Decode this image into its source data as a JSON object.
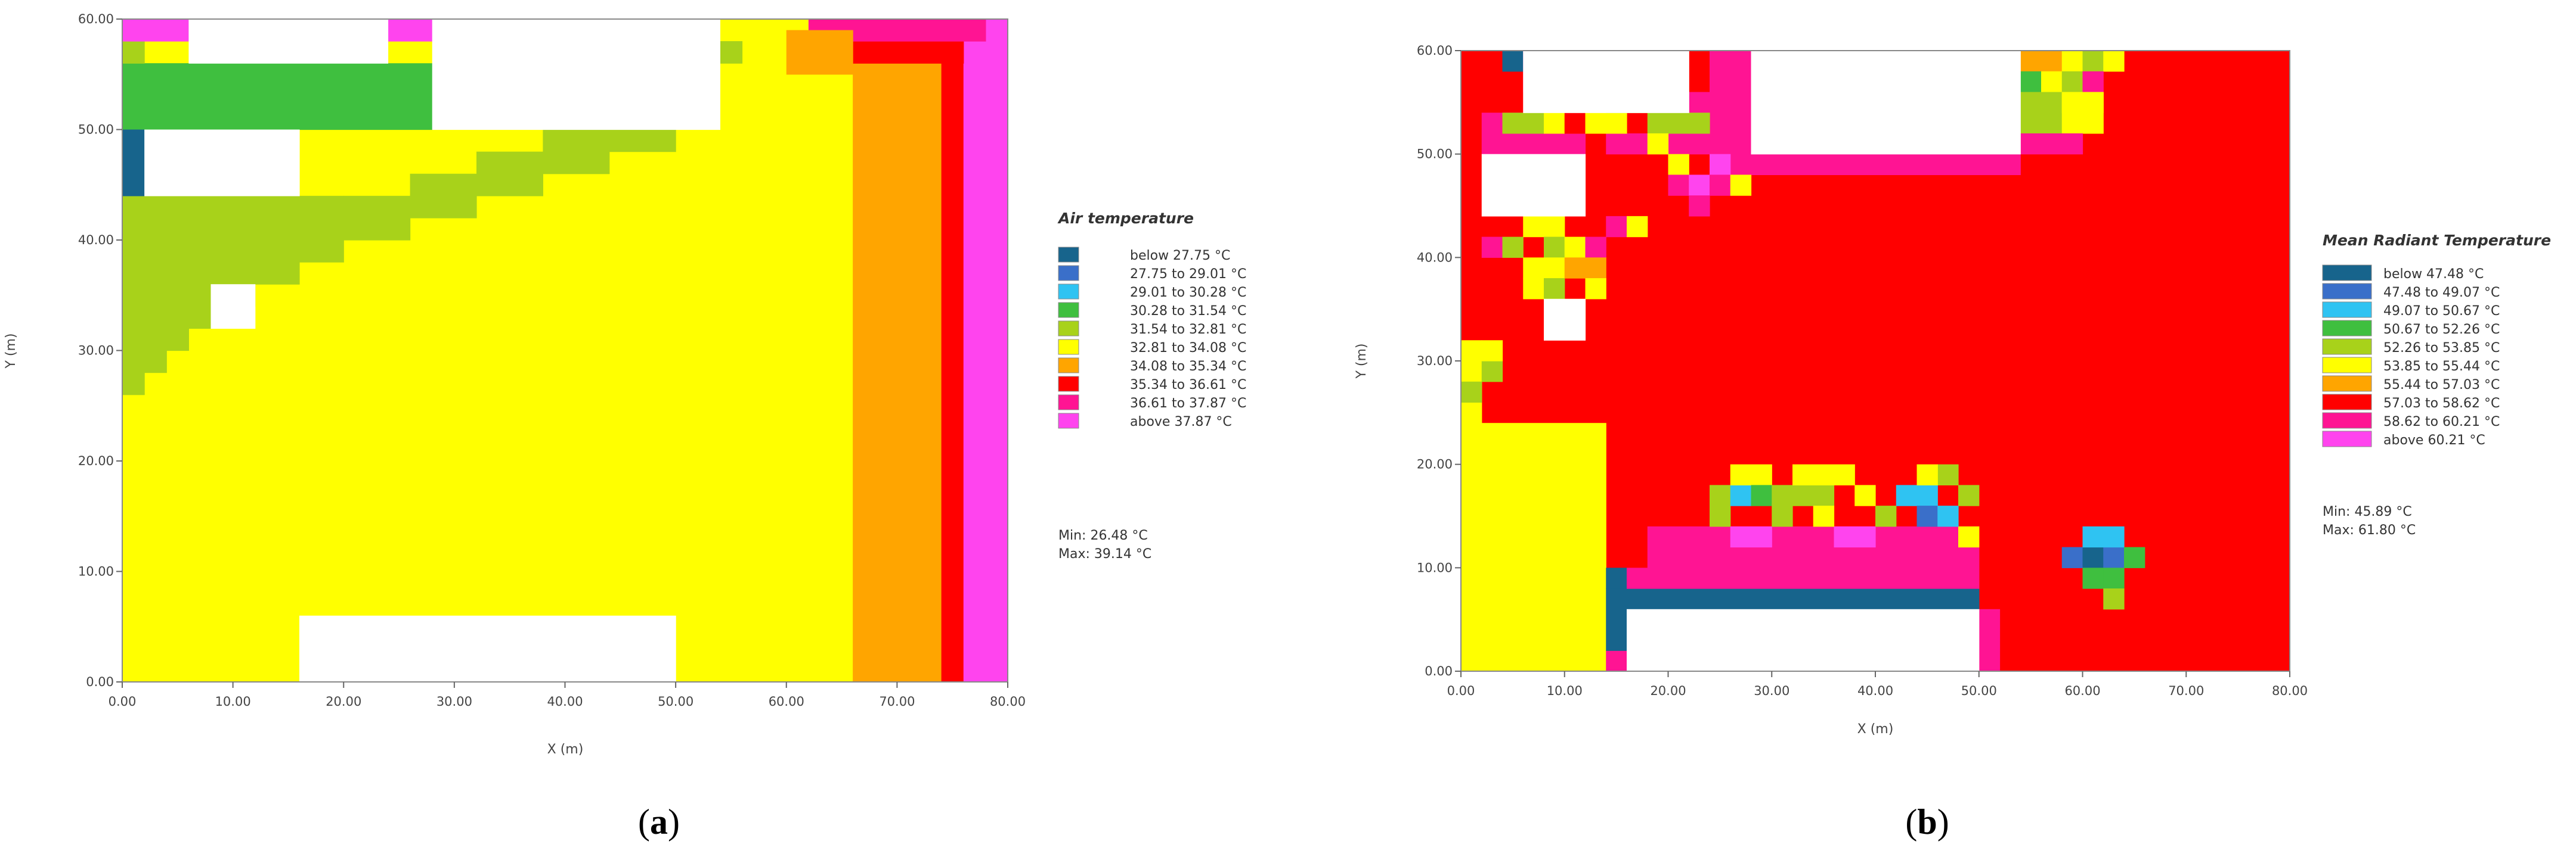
{
  "colors": [
    "#17648c",
    "#3a6fc9",
    "#2fc3f2",
    "#3fbf3f",
    "#a8d21a",
    "#ffff00",
    "#ffa500",
    "#ff0000",
    "#ff1493",
    "#ff44ee"
  ],
  "chart_data": [
    {
      "type": "heatmap",
      "panel_label": "a",
      "xlabel": "X (m)",
      "ylabel": "Y (m)",
      "xlim": [
        0,
        80
      ],
      "ylim": [
        0,
        60
      ],
      "x_ticks": [
        "0.00",
        "10.00",
        "20.00",
        "30.00",
        "40.00",
        "50.00",
        "60.00",
        "70.00",
        "80.00"
      ],
      "y_ticks": [
        "0.00",
        "10.00",
        "20.00",
        "30.00",
        "40.00",
        "50.00",
        "60.00"
      ],
      "legend": {
        "title": "Air temperature",
        "entries": [
          "below 27.75 °C",
          "27.75 to 29.01 °C",
          "29.01 to 30.28 °C",
          "30.28 to 31.54 °C",
          "31.54 to 32.81 °C",
          "32.81 to 34.08 °C",
          "34.08 to 35.34 °C",
          "35.34 to 36.61 °C",
          "36.61 to 37.87 °C",
          "above 37.87 °C"
        ],
        "min": "Min: 26.48 °C",
        "max": "Max: 39.14 °C"
      },
      "cells": [
        [
          0,
          0,
          80,
          60,
          5
        ],
        [
          66,
          0,
          8,
          60,
          6
        ],
        [
          74,
          0,
          2,
          60,
          7
        ],
        [
          76,
          0,
          4,
          60,
          9
        ],
        [
          64,
          56,
          12,
          3,
          7
        ],
        [
          62,
          58,
          16,
          2,
          8
        ],
        [
          60,
          55,
          6,
          4,
          6
        ],
        [
          0,
          44,
          8,
          12,
          4
        ],
        [
          0,
          26,
          2,
          18,
          4
        ],
        [
          2,
          28,
          2,
          16,
          4
        ],
        [
          4,
          30,
          2,
          14,
          4
        ],
        [
          6,
          32,
          2,
          12,
          4
        ],
        [
          8,
          34,
          4,
          10,
          4
        ],
        [
          12,
          36,
          4,
          8,
          4
        ],
        [
          16,
          38,
          4,
          6,
          4
        ],
        [
          20,
          40,
          6,
          4,
          4
        ],
        [
          26,
          42,
          6,
          4,
          4
        ],
        [
          32,
          44,
          6,
          4,
          4
        ],
        [
          38,
          46,
          6,
          4,
          4
        ],
        [
          44,
          48,
          6,
          4,
          4
        ],
        [
          0,
          50,
          28,
          6,
          3
        ],
        [
          0,
          44,
          2,
          6,
          0
        ],
        [
          0,
          56,
          2,
          2,
          4
        ],
        [
          0,
          58,
          6,
          2,
          9
        ],
        [
          24,
          58,
          4,
          2,
          9
        ],
        [
          54,
          56,
          2,
          2,
          4
        ],
        [
          48,
          54,
          4,
          2,
          4
        ],
        [
          8,
          32,
          4,
          4,
          -1
        ],
        [
          2,
          44,
          14,
          6,
          -1
        ],
        [
          6,
          56,
          18,
          4,
          -1
        ],
        [
          28,
          50,
          26,
          10,
          -1
        ],
        [
          16,
          0,
          34,
          6,
          -1
        ]
      ]
    },
    {
      "type": "heatmap",
      "panel_label": "b",
      "xlabel": "X (m)",
      "ylabel": "Y (m)",
      "xlim": [
        0,
        80
      ],
      "ylim": [
        0,
        60
      ],
      "x_ticks": [
        "0.00",
        "10.00",
        "20.00",
        "30.00",
        "40.00",
        "50.00",
        "60.00",
        "70.00",
        "80.00"
      ],
      "y_ticks": [
        "0.00",
        "10.00",
        "20.00",
        "30.00",
        "40.00",
        "50.00",
        "60.00"
      ],
      "legend": {
        "title": "Mean Radiant Temperature",
        "entries": [
          "below 47.48 °C",
          "47.48 to 49.07 °C",
          "49.07 to 50.67 °C",
          "50.67 to 52.26 °C",
          "52.26 to 53.85 °C",
          "53.85 to 55.44 °C",
          "55.44 to 57.03 °C",
          "57.03 to 58.62 °C",
          "58.62 to 60.21 °C",
          "above 60.21 °C"
        ],
        "min": "Min: 45.89 °C",
        "max": "Max: 61.80 °C"
      },
      "cells": [
        [
          0,
          0,
          80,
          60,
          7
        ],
        [
          0,
          0,
          14,
          24,
          5
        ],
        [
          0,
          24,
          2,
          8,
          5
        ],
        [
          0,
          26,
          2,
          2,
          4
        ],
        [
          2,
          28,
          2,
          2,
          4
        ],
        [
          2,
          30,
          2,
          2,
          5
        ],
        [
          14,
          0,
          2,
          2,
          8
        ],
        [
          14,
          2,
          2,
          6,
          0
        ],
        [
          16,
          6,
          34,
          2,
          0
        ],
        [
          14,
          8,
          2,
          2,
          0
        ],
        [
          50,
          0,
          2,
          6,
          8
        ],
        [
          16,
          8,
          34,
          2,
          8
        ],
        [
          18,
          10,
          32,
          4,
          8
        ],
        [
          26,
          12,
          4,
          2,
          9
        ],
        [
          36,
          12,
          4,
          2,
          9
        ],
        [
          48,
          12,
          2,
          2,
          5
        ],
        [
          24,
          14,
          2,
          4,
          4
        ],
        [
          26,
          16,
          2,
          2,
          2
        ],
        [
          26,
          18,
          4,
          2,
          5
        ],
        [
          28,
          16,
          2,
          2,
          3
        ],
        [
          30,
          14,
          2,
          4,
          4
        ],
        [
          32,
          16,
          4,
          2,
          4
        ],
        [
          34,
          14,
          2,
          2,
          5
        ],
        [
          32,
          18,
          6,
          2,
          5
        ],
        [
          38,
          16,
          2,
          2,
          5
        ],
        [
          40,
          14,
          2,
          2,
          4
        ],
        [
          42,
          16,
          4,
          2,
          2
        ],
        [
          44,
          14,
          2,
          2,
          1
        ],
        [
          46,
          14,
          2,
          2,
          2
        ],
        [
          48,
          16,
          2,
          2,
          4
        ],
        [
          46,
          18,
          2,
          2,
          4
        ],
        [
          44,
          18,
          2,
          2,
          5
        ],
        [
          58,
          10,
          2,
          2,
          1
        ],
        [
          60,
          10,
          2,
          2,
          0
        ],
        [
          62,
          10,
          2,
          2,
          1
        ],
        [
          60,
          12,
          4,
          2,
          2
        ],
        [
          62,
          8,
          2,
          2,
          3
        ],
        [
          64,
          10,
          2,
          2,
          3
        ],
        [
          60,
          8,
          2,
          2,
          3
        ],
        [
          62,
          6,
          2,
          2,
          4
        ],
        [
          0,
          58,
          2,
          2,
          7
        ],
        [
          4,
          58,
          2,
          2,
          0
        ],
        [
          6,
          56,
          2,
          4,
          8
        ],
        [
          24,
          56,
          4,
          4,
          8
        ],
        [
          22,
          50,
          4,
          6,
          8
        ],
        [
          26,
          48,
          2,
          8,
          8
        ],
        [
          28,
          50,
          2,
          4,
          8
        ],
        [
          28,
          48,
          26,
          2,
          8
        ],
        [
          2,
          50,
          2,
          4,
          8
        ],
        [
          4,
          48,
          2,
          6,
          8
        ],
        [
          6,
          50,
          6,
          2,
          8
        ],
        [
          14,
          50,
          8,
          2,
          8
        ],
        [
          4,
          52,
          4,
          2,
          4
        ],
        [
          8,
          52,
          4,
          2,
          5
        ],
        [
          10,
          52,
          2,
          2,
          7
        ],
        [
          12,
          52,
          4,
          2,
          5
        ],
        [
          14,
          54,
          4,
          2,
          4
        ],
        [
          18,
          52,
          4,
          2,
          4
        ],
        [
          22,
          52,
          2,
          2,
          4
        ],
        [
          18,
          50,
          2,
          2,
          5
        ],
        [
          20,
          48,
          2,
          2,
          5
        ],
        [
          20,
          46,
          2,
          2,
          8
        ],
        [
          22,
          46,
          2,
          2,
          9
        ],
        [
          24,
          48,
          2,
          2,
          9
        ],
        [
          24,
          46,
          2,
          2,
          8
        ],
        [
          22,
          44,
          2,
          2,
          8
        ],
        [
          26,
          46,
          2,
          2,
          5
        ],
        [
          2,
          40,
          2,
          2,
          8
        ],
        [
          4,
          40,
          2,
          2,
          4
        ],
        [
          6,
          42,
          4,
          2,
          5
        ],
        [
          8,
          40,
          2,
          2,
          4
        ],
        [
          10,
          40,
          2,
          2,
          5
        ],
        [
          12,
          40,
          2,
          2,
          8
        ],
        [
          6,
          38,
          4,
          2,
          5
        ],
        [
          10,
          38,
          4,
          2,
          6
        ],
        [
          6,
          36,
          2,
          2,
          5
        ],
        [
          8,
          36,
          2,
          2,
          4
        ],
        [
          12,
          36,
          2,
          2,
          5
        ],
        [
          8,
          34,
          4,
          2,
          5
        ],
        [
          14,
          42,
          2,
          2,
          8
        ],
        [
          16,
          42,
          2,
          2,
          5
        ],
        [
          54,
          58,
          4,
          2,
          6
        ],
        [
          58,
          58,
          2,
          2,
          5
        ],
        [
          60,
          58,
          2,
          2,
          4
        ],
        [
          62,
          58,
          2,
          2,
          5
        ],
        [
          54,
          56,
          2,
          2,
          3
        ],
        [
          56,
          56,
          2,
          2,
          5
        ],
        [
          58,
          56,
          2,
          2,
          4
        ],
        [
          60,
          56,
          2,
          2,
          8
        ],
        [
          54,
          52,
          4,
          4,
          4
        ],
        [
          58,
          52,
          4,
          4,
          5
        ],
        [
          54,
          50,
          6,
          2,
          8
        ],
        [
          58,
          54,
          4,
          2,
          5
        ],
        [
          6,
          54,
          16,
          6,
          -1
        ],
        [
          2,
          44,
          10,
          6,
          -1
        ],
        [
          8,
          32,
          4,
          4,
          -1
        ],
        [
          28,
          50,
          26,
          10,
          -1
        ],
        [
          16,
          0,
          34,
          6,
          -1
        ]
      ]
    }
  ]
}
